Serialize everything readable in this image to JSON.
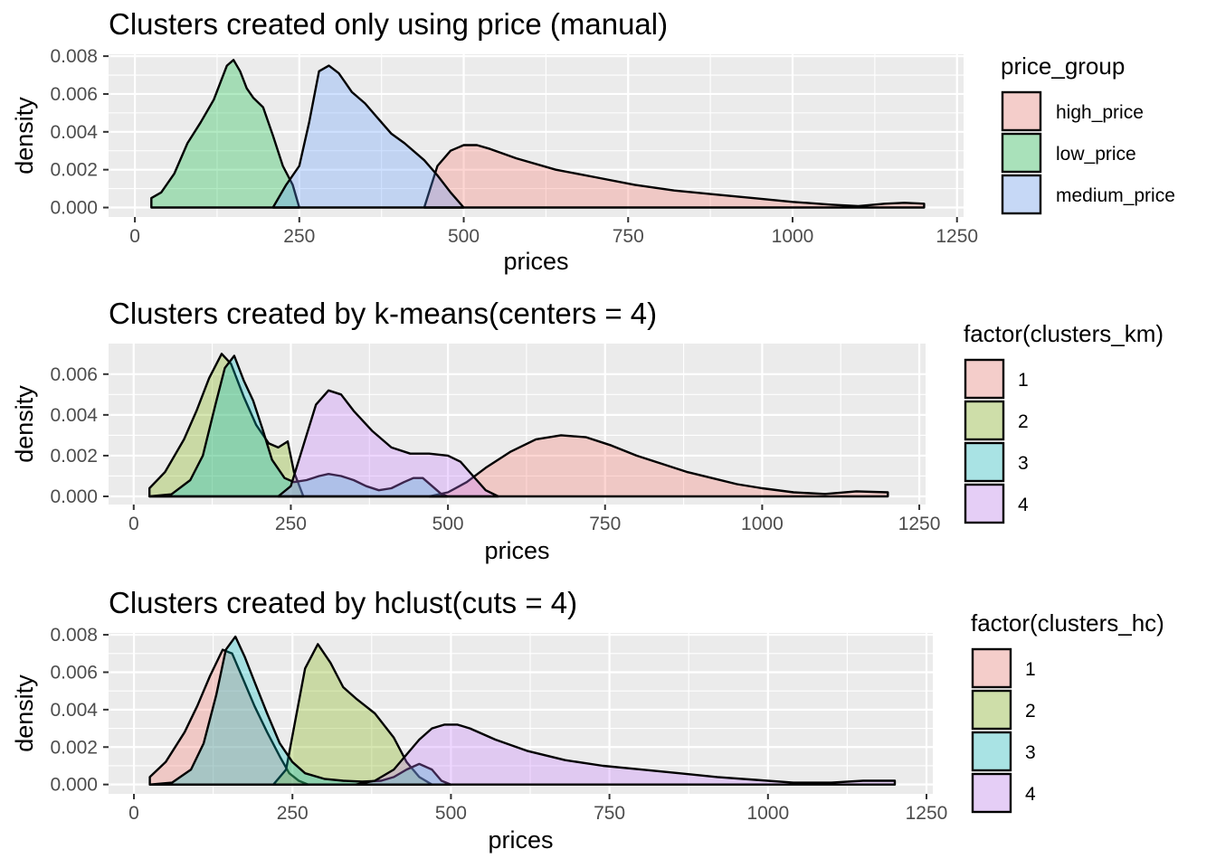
{
  "chart_data": [
    {
      "type": "area",
      "title": "Clusters created only using price (manual)",
      "xlabel": "prices",
      "ylabel": "density",
      "xlim": [
        -40,
        1260
      ],
      "ylim": [
        -0.0005,
        0.0081
      ],
      "x_ticks": [
        0,
        250,
        500,
        750,
        1000,
        1250
      ],
      "x_tick_labels": [
        "0",
        "250",
        "500",
        "750",
        "1000",
        "1250"
      ],
      "y_ticks": [
        0,
        0.002,
        0.004,
        0.006,
        0.008
      ],
      "y_tick_labels": [
        "0.000",
        "0.002",
        "0.004",
        "0.006",
        "0.008"
      ],
      "grid": true,
      "legend": {
        "title": "price_group",
        "position": "right"
      },
      "series": [
        {
          "name": "high_price",
          "color": "#F8766D",
          "x": [
            440,
            460,
            480,
            500,
            520,
            540,
            580,
            640,
            700,
            760,
            820,
            880,
            940,
            1000,
            1060,
            1100,
            1140,
            1170,
            1200
          ],
          "y": [
            0.0,
            0.0022,
            0.003,
            0.0033,
            0.0033,
            0.0031,
            0.0026,
            0.002,
            0.0016,
            0.0012,
            0.0009,
            0.0007,
            0.0005,
            0.0003,
            0.00015,
            8e-05,
            0.0002,
            0.00025,
            0.0002
          ]
        },
        {
          "name": "low_price",
          "color": "#00BA38",
          "x": [
            25,
            40,
            60,
            80,
            100,
            120,
            140,
            150,
            160,
            170,
            180,
            195,
            210,
            225,
            240,
            250
          ],
          "y": [
            0.0005,
            0.0008,
            0.0018,
            0.0034,
            0.0045,
            0.0057,
            0.0075,
            0.0078,
            0.0072,
            0.0063,
            0.0058,
            0.0053,
            0.0038,
            0.0022,
            0.0012,
            0.0
          ]
        },
        {
          "name": "medium_price",
          "color": "#619CFF",
          "x": [
            210,
            230,
            250,
            265,
            280,
            295,
            310,
            330,
            350,
            370,
            390,
            410,
            440,
            460,
            480,
            500
          ],
          "y": [
            0.0,
            0.0012,
            0.0022,
            0.0045,
            0.0072,
            0.0075,
            0.0071,
            0.0061,
            0.0055,
            0.0047,
            0.0039,
            0.0034,
            0.0025,
            0.0017,
            0.0008,
            0.0
          ]
        }
      ]
    },
    {
      "type": "area",
      "title": "Clusters created by k-means(centers = 4)",
      "xlabel": "prices",
      "ylabel": "density",
      "xlim": [
        -40,
        1260
      ],
      "ylim": [
        -0.0004,
        0.0075
      ],
      "x_ticks": [
        0,
        250,
        500,
        750,
        1000,
        1250
      ],
      "x_tick_labels": [
        "0",
        "250",
        "500",
        "750",
        "1000",
        "1250"
      ],
      "y_ticks": [
        0,
        0.002,
        0.004,
        0.006
      ],
      "y_tick_labels": [
        "0.000",
        "0.002",
        "0.004",
        "0.006"
      ],
      "grid": true,
      "legend": {
        "title": "factor(clusters_km)",
        "position": "right"
      },
      "series": [
        {
          "name": "1",
          "color": "#F8766D",
          "x": [
            470,
            500,
            530,
            560,
            600,
            640,
            680,
            720,
            760,
            800,
            840,
            880,
            920,
            960,
            1000,
            1050,
            1100,
            1150,
            1200
          ],
          "y": [
            0.0,
            0.0002,
            0.0007,
            0.0014,
            0.0022,
            0.0028,
            0.003,
            0.0029,
            0.0025,
            0.002,
            0.0016,
            0.0012,
            0.0009,
            0.0006,
            0.0004,
            0.0002,
            0.00012,
            0.00025,
            0.0002
          ]
        },
        {
          "name": "2",
          "color": "#7CAE00",
          "x": [
            25,
            50,
            80,
            100,
            120,
            140,
            155,
            175,
            195,
            215,
            230,
            245,
            255,
            270
          ],
          "y": [
            0.0004,
            0.0012,
            0.0028,
            0.0042,
            0.0058,
            0.007,
            0.0065,
            0.0049,
            0.0035,
            0.0026,
            0.0024,
            0.0027,
            0.0012,
            0.0
          ]
        },
        {
          "name": "3",
          "color": "#00BFC4",
          "x": [
            25,
            60,
            90,
            110,
            130,
            145,
            160,
            175,
            190,
            205,
            220,
            240,
            255,
            275,
            295,
            310,
            330,
            350,
            370,
            390,
            410,
            430,
            445,
            460,
            475,
            490,
            500
          ],
          "y": [
            0.0,
            0.0001,
            0.0008,
            0.002,
            0.0045,
            0.0063,
            0.0069,
            0.0057,
            0.0047,
            0.0033,
            0.0018,
            0.0009,
            0.0007,
            0.0008,
            0.001,
            0.0011,
            0.001,
            0.0008,
            0.0005,
            0.0003,
            0.0004,
            0.0007,
            0.0009,
            0.0009,
            0.0005,
            0.0001,
            0.0
          ]
        },
        {
          "name": "4",
          "color": "#C77CFF",
          "x": [
            230,
            250,
            270,
            290,
            310,
            330,
            350,
            380,
            410,
            440,
            470,
            500,
            520,
            540,
            560,
            580
          ],
          "y": [
            0.0,
            0.0005,
            0.0025,
            0.0045,
            0.0052,
            0.005,
            0.0042,
            0.0032,
            0.0024,
            0.0021,
            0.0021,
            0.002,
            0.0017,
            0.001,
            0.0003,
            0.0
          ]
        }
      ]
    },
    {
      "type": "area",
      "title": "Clusters created by hclust(cuts = 4)",
      "xlabel": "prices",
      "ylabel": "density",
      "xlim": [
        -40,
        1260
      ],
      "ylim": [
        -0.0005,
        0.0081
      ],
      "x_ticks": [
        0,
        250,
        500,
        750,
        1000,
        1250
      ],
      "x_tick_labels": [
        "0",
        "250",
        "500",
        "750",
        "1000",
        "1250"
      ],
      "y_ticks": [
        0,
        0.002,
        0.004,
        0.006,
        0.008
      ],
      "y_tick_labels": [
        "0.000",
        "0.002",
        "0.004",
        "0.006",
        "0.008"
      ],
      "grid": true,
      "legend": {
        "title": "factor(clusters_hc)",
        "position": "right"
      },
      "series": [
        {
          "name": "1",
          "color": "#F8766D",
          "x": [
            25,
            50,
            80,
            100,
            120,
            140,
            155,
            170,
            190,
            210,
            230,
            245,
            260,
            275
          ],
          "y": [
            0.0004,
            0.0012,
            0.0028,
            0.0042,
            0.0058,
            0.0072,
            0.007,
            0.0058,
            0.0042,
            0.0028,
            0.0015,
            0.0006,
            0.0002,
            0.0
          ]
        },
        {
          "name": "2",
          "color": "#7CAE00",
          "x": [
            220,
            240,
            255,
            270,
            290,
            310,
            330,
            350,
            380,
            410,
            430,
            450,
            470
          ],
          "y": [
            0.0,
            0.0008,
            0.0035,
            0.0062,
            0.0075,
            0.0065,
            0.0052,
            0.0046,
            0.0038,
            0.0025,
            0.0012,
            0.0004,
            0.0
          ]
        },
        {
          "name": "3",
          "color": "#00BFC4",
          "x": [
            25,
            60,
            90,
            110,
            130,
            145,
            160,
            175,
            190,
            210,
            230,
            250,
            270,
            300,
            330,
            360,
            390,
            410,
            430,
            450,
            470,
            485,
            500
          ],
          "y": [
            0.0,
            0.0001,
            0.0008,
            0.0022,
            0.0048,
            0.0072,
            0.0079,
            0.0068,
            0.0055,
            0.0038,
            0.0022,
            0.0012,
            0.0006,
            0.0003,
            0.0002,
            0.00015,
            0.0002,
            0.0004,
            0.0008,
            0.0011,
            0.0008,
            0.0002,
            0.0
          ]
        },
        {
          "name": "4",
          "color": "#C77CFF",
          "x": [
            350,
            380,
            410,
            430,
            450,
            470,
            490,
            510,
            530,
            570,
            620,
            680,
            740,
            800,
            860,
            920,
            980,
            1040,
            1100,
            1150,
            1200
          ],
          "y": [
            0.0,
            0.0002,
            0.0008,
            0.0016,
            0.0024,
            0.003,
            0.0032,
            0.0032,
            0.003,
            0.0024,
            0.0018,
            0.0013,
            0.001,
            0.0008,
            0.0006,
            0.0004,
            0.00025,
            0.0001,
            0.0001,
            0.0002,
            0.0002
          ]
        }
      ]
    }
  ]
}
